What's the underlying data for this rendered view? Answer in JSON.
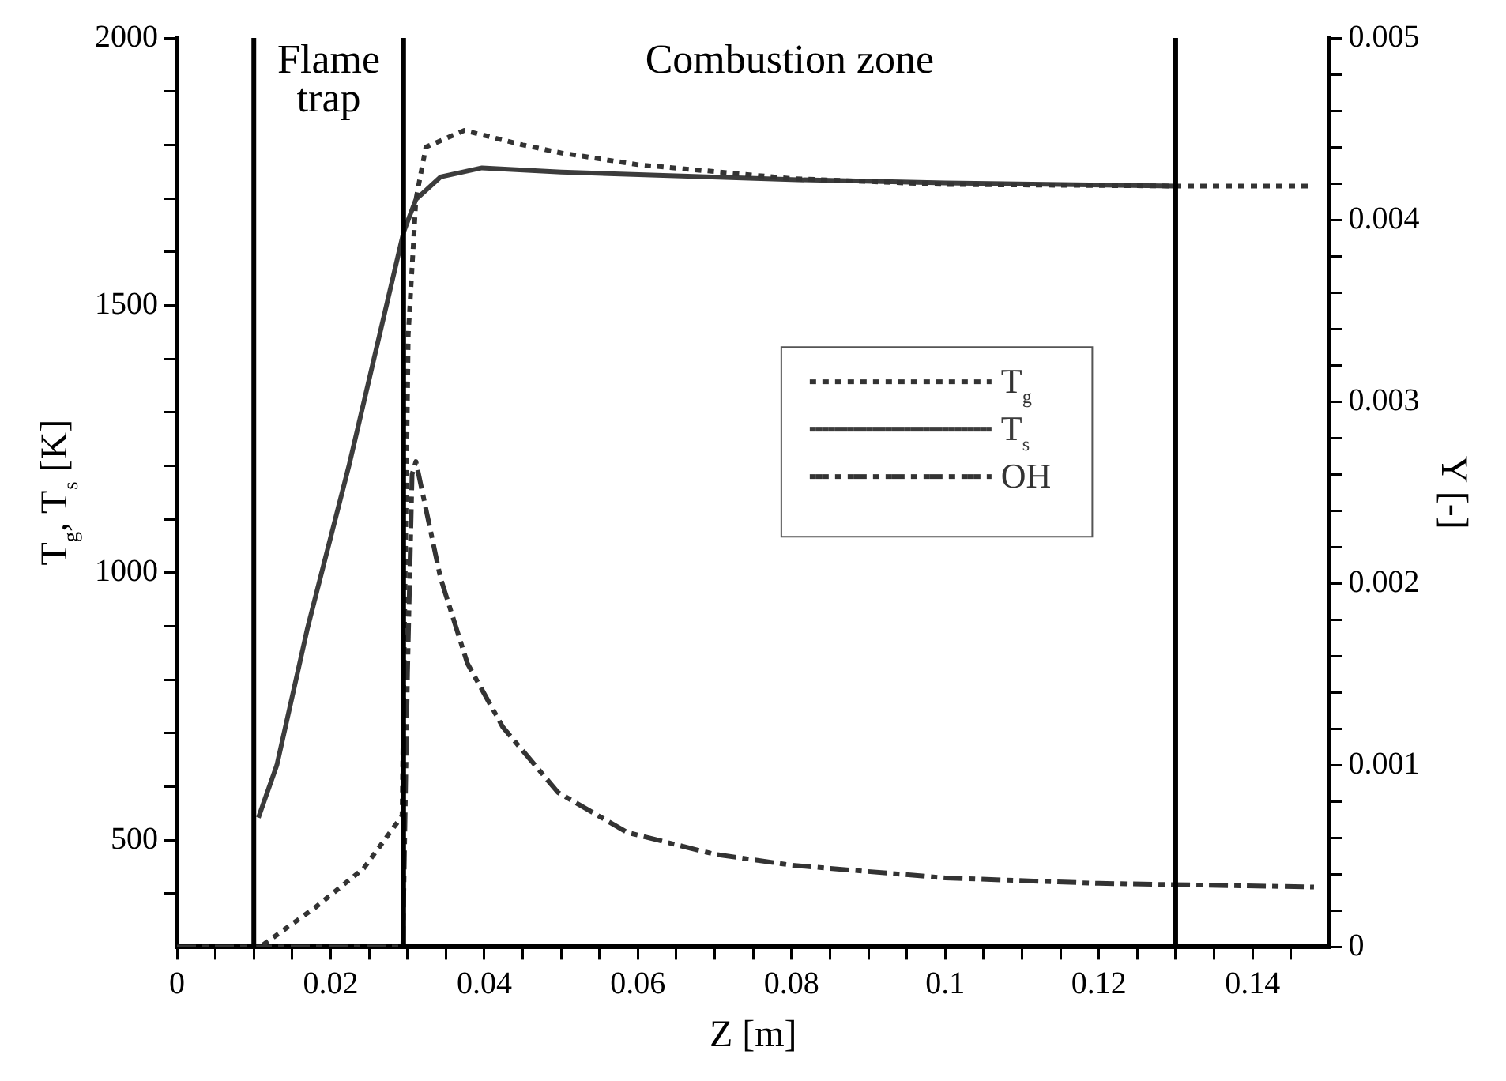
{
  "chart_data": {
    "type": "line",
    "xlabel": "Z [m]",
    "ylabel": "T$_{g}$, T$_{s}$ [K]",
    "y2label": "Y [-]",
    "xlim": [
      0,
      0.15
    ],
    "xticks": [
      0,
      {
        "value": 0.005,
        "label": null
      },
      0.02,
      {
        "value": 0.01,
        "label": null
      },
      {
        "value": 0.015,
        "label": null
      },
      {
        "value": 0.025,
        "label": null
      },
      {
        "value": 0.03,
        "label": null
      },
      {
        "value": 0.035,
        "label": null
      },
      0.04,
      {
        "value": 0.045,
        "label": null
      },
      {
        "value": 0.05,
        "label": null
      },
      {
        "value": 0.055,
        "label": null
      },
      0.06,
      {
        "value": 0.065,
        "label": null
      },
      {
        "value": 0.07,
        "label": null
      },
      {
        "value": 0.075,
        "label": null
      },
      0.08,
      {
        "value": 0.085,
        "label": null
      },
      {
        "value": 0.09,
        "label": null
      },
      {
        "value": 0.095,
        "label": null
      },
      0.1,
      {
        "value": 0.105,
        "label": null
      },
      {
        "value": 0.11,
        "label": null
      },
      {
        "value": 0.115,
        "label": null
      },
      0.12,
      {
        "value": 0.125,
        "label": null
      },
      {
        "value": 0.13,
        "label": null
      },
      {
        "value": 0.135,
        "label": null
      },
      0.14,
      {
        "value": 0.145,
        "label": null
      }
    ],
    "ylim": [
      300,
      2000
    ],
    "yticks": [
      {
        "value": 400,
        "label": null
      },
      500,
      {
        "value": 600,
        "label": null
      },
      {
        "value": 700,
        "label": null
      },
      {
        "value": 800,
        "label": null
      },
      {
        "value": 900,
        "label": null
      },
      1000,
      {
        "value": 1100,
        "label": null
      },
      {
        "value": 1200,
        "label": null
      },
      {
        "value": 1300,
        "label": null
      },
      {
        "value": 1400,
        "label": null
      },
      1500,
      {
        "value": 1600,
        "label": null
      },
      {
        "value": 1700,
        "label": null
      },
      {
        "value": 1800,
        "label": null
      },
      {
        "value": 1900,
        "label": null
      },
      2000
    ],
    "y2lim": [
      0,
      0.005
    ],
    "y2ticks": [
      0,
      {
        "value": 0.0002,
        "label": null
      },
      {
        "value": 0.0004,
        "label": null
      },
      {
        "value": 0.0006,
        "label": null
      },
      {
        "value": 0.0008,
        "label": null
      },
      0.001,
      {
        "value": 0.0012,
        "label": null
      },
      {
        "value": 0.0014,
        "label": null
      },
      {
        "value": 0.0016,
        "label": null
      },
      {
        "value": 0.0018,
        "label": null
      },
      0.002,
      {
        "value": 0.0022,
        "label": null
      },
      {
        "value": 0.0024,
        "label": null
      },
      {
        "value": 0.0026,
        "label": null
      },
      {
        "value": 0.0028,
        "label": null
      },
      0.003,
      {
        "value": 0.0032,
        "label": null
      },
      {
        "value": 0.0034,
        "label": null
      },
      {
        "value": 0.0036,
        "label": null
      },
      {
        "value": 0.0038,
        "label": null
      },
      0.004,
      {
        "value": 0.0042,
        "label": null
      },
      {
        "value": 0.0044,
        "label": null
      },
      {
        "value": 0.0046,
        "label": null
      },
      {
        "value": 0.0048,
        "label": null
      },
      0.005
    ],
    "grid": false,
    "legend": "right",
    "series": [
      {
        "name": "T$_{g}$",
        "color": "#333333",
        "line_style": "dotted",
        "x": [
          0.0112,
          0.018,
          0.0243,
          0.0293,
          0.0301,
          0.0311,
          0.0324,
          0.0374,
          0.045,
          0.05,
          0.06,
          0.08,
          0.1,
          0.13,
          0.148
        ],
        "values": [
          304,
          374,
          447,
          545,
          1444,
          1698,
          1796,
          1827,
          1800,
          1785,
          1763,
          1737,
          1726,
          1723,
          1723
        ]
      },
      {
        "name": "T$_{s}$",
        "color": "#3c3c3c",
        "line_style": "solid",
        "x": [
          0.0106,
          0.013,
          0.017,
          0.0224,
          0.0295,
          0.0311,
          0.0343,
          0.0397,
          0.05,
          0.08,
          0.1,
          0.13
        ],
        "values": [
          542,
          640,
          897,
          1201,
          1637,
          1698,
          1740,
          1757,
          1749,
          1735,
          1729,
          1723
        ]
      },
      {
        "name": "OH",
        "color": "#333333",
        "line_style": "dashed",
        "axis": "y2",
        "x": [
          0,
          0.0294,
          0.03,
          0.0306,
          0.0311,
          0.0343,
          0.0378,
          0.0424,
          0.0496,
          0.0586,
          0.07,
          0.08,
          0.1,
          0.12,
          0.148
        ],
        "values": [
          0,
          0,
          0.0015,
          0.0026,
          0.00267,
          0.00203,
          0.00156,
          0.00121,
          0.00085,
          0.00063,
          0.00051,
          0.00045,
          0.00038,
          0.00035,
          0.00033
        ]
      }
    ],
    "ref_lines": [
      {
        "axis": "x",
        "value": 0.01,
        "color": "#000000"
      },
      {
        "axis": "x",
        "value": 0.0295,
        "color": "#000000"
      },
      {
        "axis": "x",
        "value": 0.13,
        "color": "#000000"
      }
    ],
    "annotations": [
      "Flame trap",
      "Combustion zone"
    ]
  }
}
